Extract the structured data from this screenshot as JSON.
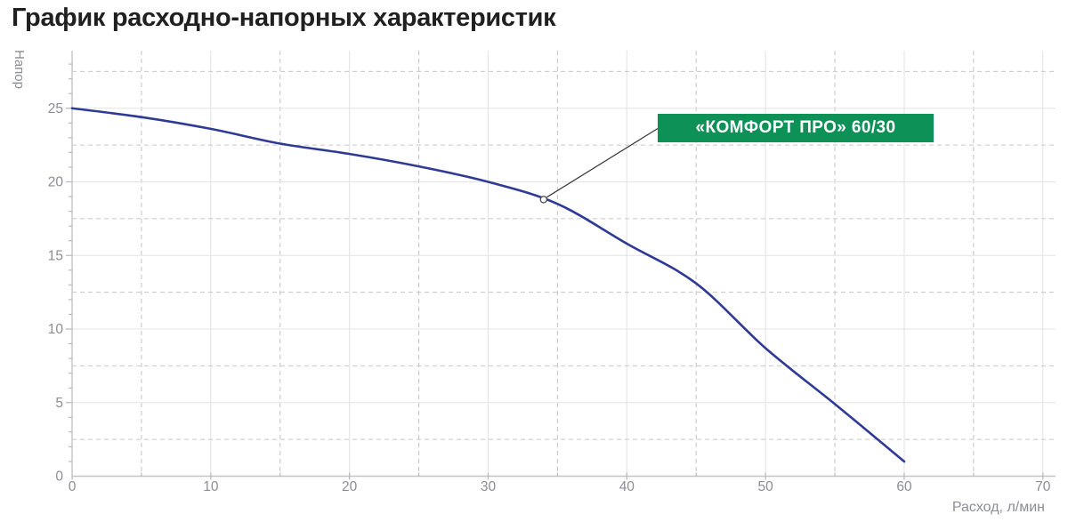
{
  "chart_data": {
    "type": "line",
    "title": "График расходно-напорных характеристик",
    "xlabel": "Расход, л/мин",
    "ylabel": "Напор",
    "x": [
      0,
      5,
      10,
      15,
      20,
      25,
      30,
      35,
      40,
      45,
      50,
      55,
      60
    ],
    "series": [
      {
        "name": "«КОМФОРТ ПРО» 60/30",
        "values": [
          25,
          24.4,
          23.6,
          22.6,
          21.9,
          21.05,
          20.0,
          18.5,
          15.8,
          13.1,
          8.7,
          4.9,
          1.0
        ]
      }
    ],
    "xlim": [
      0,
      70
    ],
    "ylim": [
      0,
      28.9
    ],
    "xticks": [
      0,
      10,
      20,
      30,
      40,
      50,
      60,
      70
    ],
    "xtick_labels": [
      "0",
      "10",
      "20",
      "30",
      "40",
      "50",
      "60",
      "70"
    ],
    "yticks": [
      0,
      5,
      10,
      15,
      20,
      25
    ],
    "ytick_labels": [
      "0",
      "5",
      "10",
      "15",
      "20",
      "25"
    ],
    "grid": {
      "x_solid": [
        10,
        20,
        30,
        40,
        50,
        60,
        70
      ],
      "x_dashed": [
        5,
        15,
        25,
        35,
        45,
        55,
        65
      ],
      "y_solid": [
        5,
        10,
        15,
        20,
        25
      ],
      "y_dashed": [
        2.5,
        7.5,
        12.5,
        17.5,
        22.5,
        27.5
      ]
    },
    "x_minor_tick_step": 5,
    "y_minor_tick_step": 1,
    "legend_position": "none",
    "annotation": {
      "label": "«КОМФОРТ ПРО» 60/30",
      "point": {
        "x": 34,
        "y": 18.8
      },
      "marker": "open-circle"
    }
  },
  "style": {
    "curve_color": "#2e3a96",
    "annotation_bg": "#0e9157",
    "annotation_text_color": "#ffffff",
    "leader_line_color": "#3a3a3a",
    "marker_fill": "#ffffff",
    "marker_stroke": "#4a4a4a",
    "grid_solid_color": "#e4e4e4",
    "grid_dashed_color": "#c8c8c8",
    "axis_color": "#c4c4c4",
    "tick_color": "#b8b8b8",
    "tick_label_color": "#8c8e94",
    "title_color": "#202020"
  }
}
